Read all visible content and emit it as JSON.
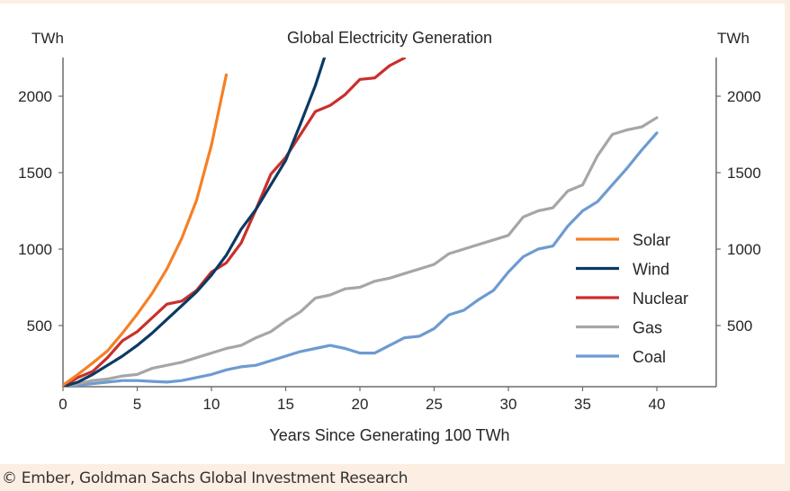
{
  "chart_data": {
    "type": "line",
    "title": "Global Electricity Generation",
    "xlabel": "Years Since Generating 100 TWh",
    "ylabel_left": "TWh",
    "ylabel_right": "TWh",
    "xlim": [
      0,
      44
    ],
    "ylim": [
      100,
      2250
    ],
    "x_ticks": [
      0,
      5,
      10,
      15,
      20,
      25,
      30,
      35,
      40
    ],
    "y_ticks": [
      500,
      1000,
      1500,
      2000
    ],
    "grid": false,
    "legend_position": "center-right",
    "series": [
      {
        "name": "Solar",
        "color": "#f58025",
        "x": [
          0,
          1,
          2,
          3,
          4,
          5,
          6,
          7,
          8,
          9,
          10,
          11
        ],
        "values": [
          110,
          180,
          255,
          335,
          450,
          575,
          710,
          870,
          1070,
          1320,
          1680,
          2140
        ]
      },
      {
        "name": "Wind",
        "color": "#0b3a63",
        "x": [
          0,
          1,
          2,
          3,
          4,
          5,
          6,
          7,
          8,
          9,
          10,
          11,
          12,
          13,
          14,
          15,
          16,
          17,
          17.6
        ],
        "values": [
          100,
          130,
          180,
          240,
          300,
          370,
          450,
          540,
          630,
          720,
          830,
          960,
          1130,
          1260,
          1420,
          1580,
          1820,
          2070,
          2250
        ]
      },
      {
        "name": "Nuclear",
        "color": "#c9302c",
        "x": [
          0,
          1,
          2,
          3,
          4,
          5,
          6,
          7,
          8,
          9,
          10,
          11,
          12,
          13,
          14,
          15,
          16,
          17,
          18,
          19,
          20,
          21,
          22,
          23
        ],
        "values": [
          100,
          160,
          200,
          290,
          400,
          460,
          550,
          640,
          660,
          730,
          850,
          910,
          1040,
          1260,
          1490,
          1600,
          1750,
          1900,
          1940,
          2010,
          2110,
          2120,
          2200,
          2250
        ]
      },
      {
        "name": "Gas",
        "color": "#a6a6a6",
        "x": [
          0,
          1,
          2,
          3,
          4,
          5,
          6,
          7,
          8,
          9,
          10,
          11,
          12,
          13,
          14,
          15,
          16,
          17,
          18,
          19,
          20,
          21,
          22,
          23,
          24,
          25,
          26,
          27,
          28,
          29,
          30,
          31,
          32,
          33,
          34,
          35,
          36,
          37,
          38,
          39,
          40
        ],
        "values": [
          100,
          120,
          140,
          150,
          170,
          180,
          220,
          240,
          260,
          290,
          320,
          350,
          370,
          420,
          460,
          530,
          590,
          680,
          700,
          740,
          750,
          790,
          810,
          840,
          870,
          900,
          970,
          1000,
          1030,
          1060,
          1090,
          1210,
          1250,
          1270,
          1380,
          1420,
          1610,
          1750,
          1780,
          1800,
          1860
        ]
      },
      {
        "name": "Coal",
        "color": "#6d9bd1",
        "x": [
          0,
          1,
          2,
          3,
          4,
          5,
          6,
          7,
          8,
          9,
          10,
          11,
          12,
          13,
          14,
          15,
          16,
          17,
          18,
          19,
          20,
          21,
          22,
          23,
          24,
          25,
          26,
          27,
          28,
          29,
          30,
          31,
          32,
          33,
          34,
          35,
          36,
          37,
          38,
          39,
          40
        ],
        "values": [
          100,
          110,
          120,
          130,
          140,
          140,
          135,
          130,
          140,
          160,
          180,
          210,
          230,
          240,
          270,
          300,
          330,
          350,
          370,
          350,
          320,
          320,
          370,
          420,
          430,
          480,
          570,
          600,
          670,
          730,
          850,
          950,
          1000,
          1020,
          1150,
          1250,
          1310,
          1420,
          1530,
          1650,
          1760
        ]
      }
    ]
  },
  "footer": {
    "credit": "© Ember, Goldman Sachs Global Investment Research"
  }
}
